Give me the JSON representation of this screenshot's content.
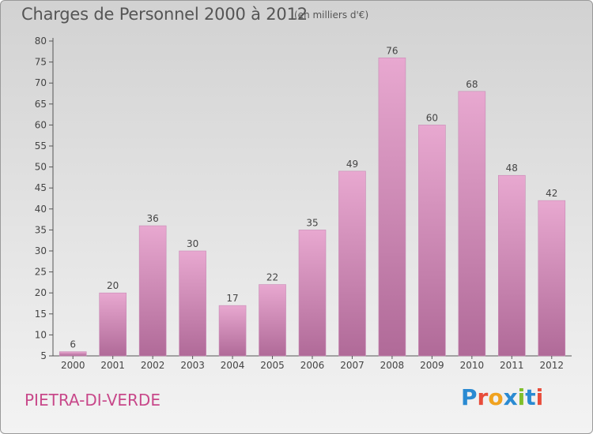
{
  "header": {
    "title": "Charges de Personnel 2000 à 2012",
    "unit_note": "(en milliers d'€)"
  },
  "footer": {
    "location": "PIETRA-DI-VERDE",
    "logo_text": "Proxiti"
  },
  "colors": {
    "bar_light": "#e8a8d0",
    "bar_dark": "#b06a98",
    "location_text": "#c8488a"
  },
  "chart_data": {
    "type": "bar",
    "title": "Charges de Personnel 2000 à 2012",
    "subtitle": "(en milliers d'€)",
    "xlabel": "",
    "ylabel": "",
    "categories": [
      "2000",
      "2001",
      "2002",
      "2003",
      "2004",
      "2005",
      "2006",
      "2007",
      "2008",
      "2009",
      "2010",
      "2011",
      "2012"
    ],
    "values": [
      6,
      20,
      36,
      30,
      17,
      22,
      35,
      49,
      76,
      60,
      68,
      48,
      42
    ],
    "ylim": [
      5,
      80
    ],
    "yticks": [
      5,
      10,
      15,
      20,
      25,
      30,
      35,
      40,
      45,
      50,
      55,
      60,
      65,
      70,
      75,
      80
    ],
    "grid": false,
    "data_labels": true
  }
}
